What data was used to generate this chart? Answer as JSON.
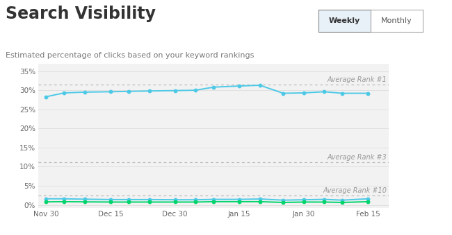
{
  "title": "Search Visibility",
  "subtitle": "Estimated percentage of clicks based on your keyword rankings",
  "background_color": "#ffffff",
  "plot_bg_color": "#f2f2f2",
  "xlabel_ticks": [
    "Nov 30",
    "Dec 15",
    "Dec 30",
    "Jan 15",
    "Jan 30",
    "Feb 15"
  ],
  "x_positions": [
    0,
    2.5,
    5,
    7.5,
    10,
    12.5
  ],
  "yticks": [
    0,
    5,
    10,
    15,
    20,
    25,
    30,
    35
  ],
  "ylim": [
    -0.8,
    37
  ],
  "xlim": [
    -0.3,
    13.3
  ],
  "avg_rank1_y": 31.5,
  "avg_rank3_y": 11.2,
  "avg_rank10_y": 2.5,
  "avg_rank1_label": "Average Rank #1",
  "avg_rank3_label": "Average Rank #3",
  "avg_rank10_label": "Average Rank #10",
  "line_blue_color": "#4dc9e6",
  "line_green_color": "#2de89b",
  "line_lime_color": "#00d46a",
  "dashed_line_color": "#bbbbbb",
  "x_data": [
    0,
    0.7,
    1.5,
    2.5,
    3.2,
    4.0,
    5.0,
    5.8,
    6.5,
    7.5,
    8.3,
    9.2,
    10.0,
    10.8,
    11.5,
    12.5
  ],
  "blue_line": [
    28.3,
    29.3,
    29.5,
    29.6,
    29.7,
    29.8,
    29.9,
    30.0,
    30.8,
    31.1,
    31.3,
    29.2,
    29.3,
    29.6,
    29.2,
    29.2
  ],
  "teal_line": [
    1.6,
    1.6,
    1.5,
    1.4,
    1.4,
    1.4,
    1.35,
    1.35,
    1.45,
    1.45,
    1.55,
    1.25,
    1.35,
    1.45,
    1.25,
    1.6
  ],
  "green_line": [
    0.8,
    0.85,
    0.8,
    0.75,
    0.75,
    0.75,
    0.75,
    0.75,
    0.85,
    0.85,
    0.85,
    0.65,
    0.75,
    0.75,
    0.65,
    0.85
  ],
  "title_fontsize": 17,
  "subtitle_fontsize": 8,
  "tick_fontsize": 7.5,
  "label_fontsize": 7,
  "weekly_label": "Weekly",
  "monthly_label": "Monthly"
}
